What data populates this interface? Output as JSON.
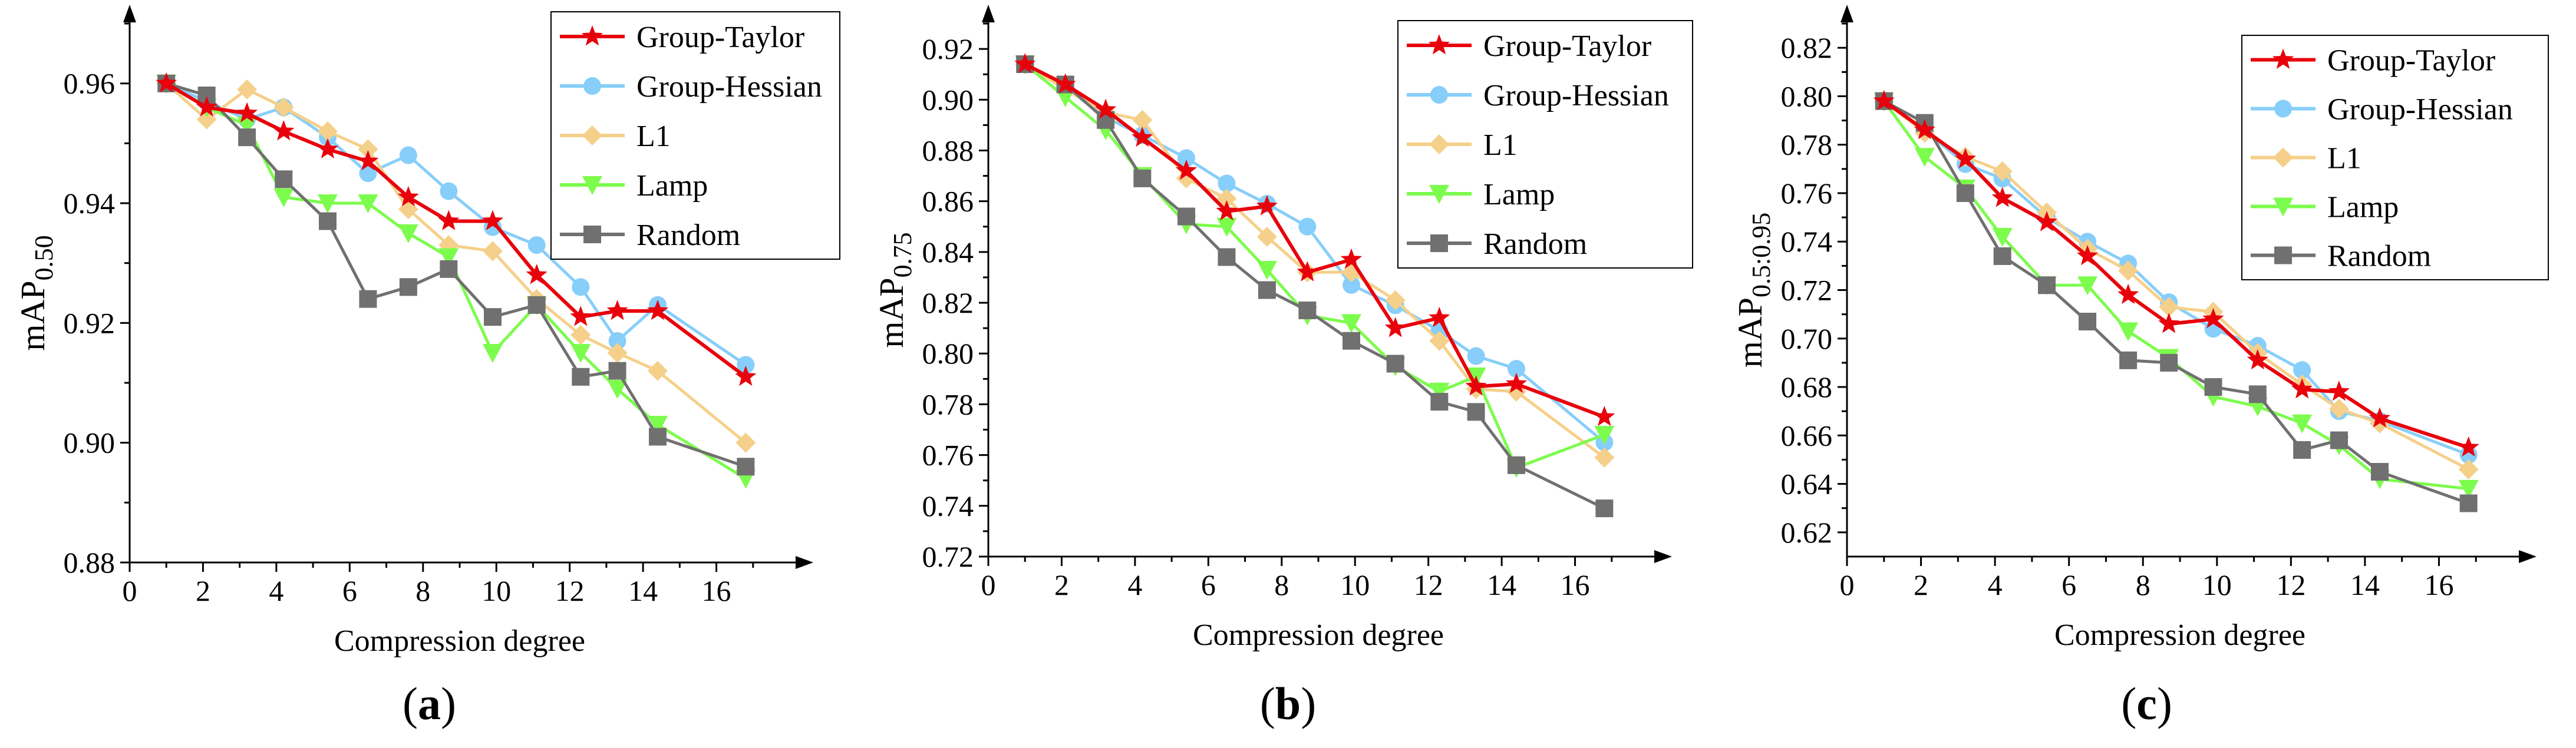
{
  "colors": {
    "Group-Taylor": "#e8000b",
    "Group-Hessian": "#87cefa",
    "L1": "#f5d08a",
    "Lamp": "#7cfc4c",
    "Random": "#707070"
  },
  "markers": {
    "Group-Taylor": "star",
    "Group-Hessian": "circle",
    "L1": "diamond",
    "Lamp": "triangle-down",
    "Random": "square"
  },
  "chart_data": [
    {
      "type": "line",
      "caption": "a",
      "xlabel": "Compression degree",
      "ylabel": "mAP",
      "ylabel_sub": "0.50",
      "xlim": [
        0,
        18
      ],
      "ylim": [
        0.88,
        0.97
      ],
      "xticks": [
        "0",
        "2",
        "4",
        "6",
        "8",
        "10",
        "12",
        "14",
        "16"
      ],
      "yticks": [
        "0.88",
        "0.90",
        "0.92",
        "0.94",
        "0.96"
      ],
      "legend_position": "top-right",
      "x": [
        1.0,
        2.1,
        3.2,
        4.2,
        5.4,
        6.5,
        7.6,
        8.7,
        9.9,
        11.1,
        12.3,
        13.3,
        14.4,
        16.8
      ],
      "series": [
        {
          "name": "Group-Taylor",
          "values": [
            0.96,
            0.956,
            0.955,
            0.952,
            0.949,
            0.947,
            0.941,
            0.937,
            0.937,
            0.928,
            0.921,
            0.922,
            0.922,
            0.911
          ]
        },
        {
          "name": "Group-Hessian",
          "values": [
            0.96,
            0.957,
            0.954,
            0.956,
            0.951,
            0.945,
            0.948,
            0.942,
            0.936,
            0.933,
            0.926,
            0.917,
            0.923,
            0.913
          ]
        },
        {
          "name": "L1",
          "values": [
            0.96,
            0.954,
            0.959,
            0.956,
            0.952,
            0.949,
            0.939,
            0.933,
            0.932,
            0.924,
            0.918,
            0.915,
            0.912,
            0.9
          ]
        },
        {
          "name": "Lamp",
          "values": [
            0.96,
            0.956,
            0.953,
            0.941,
            0.94,
            0.94,
            0.935,
            0.931,
            0.915,
            0.923,
            0.915,
            0.909,
            0.903,
            0.894
          ]
        },
        {
          "name": "Random",
          "values": [
            0.96,
            0.958,
            0.951,
            0.944,
            0.937,
            0.924,
            0.926,
            0.929,
            0.921,
            0.923,
            0.911,
            0.912,
            0.901,
            0.896
          ]
        }
      ]
    },
    {
      "type": "line",
      "caption": "b",
      "xlabel": "Compression degree",
      "ylabel": "mAP",
      "ylabel_sub": "0.75",
      "xlim": [
        0,
        18
      ],
      "ylim": [
        0.72,
        0.93
      ],
      "xticks": [
        "0",
        "2",
        "4",
        "6",
        "8",
        "10",
        "12",
        "14",
        "16"
      ],
      "yticks": [
        "0.72",
        "0.74",
        "0.76",
        "0.78",
        "0.80",
        "0.82",
        "0.84",
        "0.86",
        "0.88",
        "0.90",
        "0.92"
      ],
      "legend_position": "top-right",
      "x": [
        1.0,
        2.1,
        3.2,
        4.2,
        5.4,
        6.5,
        7.6,
        8.7,
        9.9,
        11.1,
        12.3,
        13.3,
        14.4,
        16.8
      ],
      "series": [
        {
          "name": "Group-Taylor",
          "values": [
            0.914,
            0.906,
            0.896,
            0.885,
            0.872,
            0.856,
            0.858,
            0.832,
            0.837,
            0.81,
            0.814,
            0.787,
            0.788,
            0.775
          ]
        },
        {
          "name": "Group-Hessian",
          "values": [
            0.914,
            0.905,
            0.893,
            0.886,
            0.877,
            0.867,
            0.859,
            0.85,
            0.827,
            0.819,
            0.809,
            0.799,
            0.794,
            0.765
          ]
        },
        {
          "name": "L1",
          "values": [
            0.914,
            0.904,
            0.895,
            0.892,
            0.869,
            0.861,
            0.846,
            0.832,
            0.832,
            0.821,
            0.805,
            0.786,
            0.785,
            0.759
          ]
        },
        {
          "name": "Lamp",
          "values": [
            0.914,
            0.901,
            0.888,
            0.87,
            0.851,
            0.85,
            0.833,
            0.815,
            0.812,
            0.795,
            0.785,
            0.791,
            0.755,
            0.768
          ]
        },
        {
          "name": "Random",
          "values": [
            0.914,
            0.906,
            0.892,
            0.869,
            0.854,
            0.838,
            0.825,
            0.817,
            0.805,
            0.796,
            0.781,
            0.777,
            0.756,
            0.739
          ]
        }
      ]
    },
    {
      "type": "line",
      "caption": "c",
      "xlabel": "Compression degree",
      "ylabel": "mAP",
      "ylabel_sub": "0.5:0.95",
      "xlim": [
        0,
        18
      ],
      "ylim": [
        0.61,
        0.83
      ],
      "xticks": [
        "0",
        "2",
        "4",
        "6",
        "8",
        "10",
        "12",
        "14",
        "16"
      ],
      "yticks": [
        "0.62",
        "0.64",
        "0.66",
        "0.68",
        "0.70",
        "0.72",
        "0.74",
        "0.76",
        "0.78",
        "0.80",
        "0.82"
      ],
      "legend_position": "top-right",
      "x": [
        1.0,
        2.1,
        3.2,
        4.2,
        5.4,
        6.5,
        7.6,
        8.7,
        9.9,
        11.1,
        12.3,
        13.3,
        14.4,
        16.8
      ],
      "series": [
        {
          "name": "Group-Taylor",
          "values": [
            0.798,
            0.786,
            0.774,
            0.758,
            0.748,
            0.734,
            0.718,
            0.706,
            0.708,
            0.691,
            0.679,
            0.678,
            0.667,
            0.655
          ]
        },
        {
          "name": "Group-Hessian",
          "values": [
            0.798,
            0.786,
            0.772,
            0.766,
            0.75,
            0.74,
            0.731,
            0.715,
            0.704,
            0.697,
            0.687,
            0.67,
            0.666,
            0.652
          ]
        },
        {
          "name": "L1",
          "values": [
            0.798,
            0.785,
            0.775,
            0.769,
            0.752,
            0.737,
            0.728,
            0.713,
            0.711,
            0.694,
            0.681,
            0.671,
            0.665,
            0.646
          ]
        },
        {
          "name": "Lamp",
          "values": [
            0.798,
            0.775,
            0.762,
            0.742,
            0.722,
            0.722,
            0.703,
            0.692,
            0.676,
            0.672,
            0.665,
            0.656,
            0.642,
            0.638
          ]
        },
        {
          "name": "Random",
          "values": [
            0.798,
            0.789,
            0.76,
            0.734,
            0.722,
            0.707,
            0.691,
            0.69,
            0.68,
            0.677,
            0.654,
            0.658,
            0.645,
            0.632
          ]
        }
      ]
    }
  ]
}
